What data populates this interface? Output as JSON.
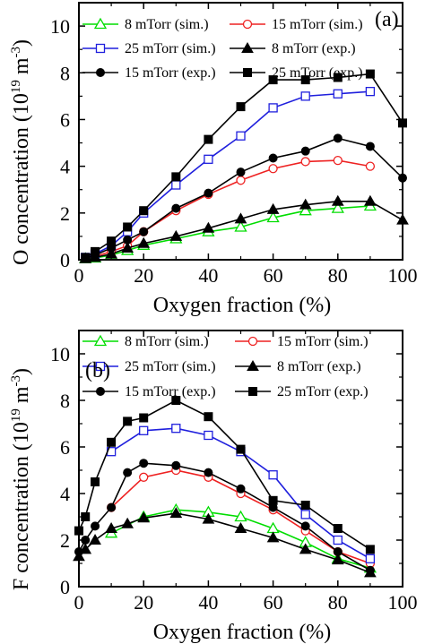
{
  "chart_data": [
    {
      "type": "line",
      "panel_label": "(a)",
      "xlabel": "Oxygen fraction (%)",
      "ylabel_main": "O concentration (10",
      "ylabel_exp": "19",
      "ylabel_unit": " m",
      "ylabel_unit_exp": "-3",
      "ylabel_close": ")",
      "xlim": [
        0,
        100
      ],
      "ylim": [
        0,
        11
      ],
      "xticks": [
        "0",
        "20",
        "40",
        "60",
        "80",
        "100"
      ],
      "yticks": [
        "0",
        "2",
        "4",
        "6",
        "8",
        "10"
      ],
      "x": [
        2,
        5,
        10,
        15,
        20,
        30,
        40,
        50,
        60,
        70,
        80,
        90
      ],
      "series": [
        {
          "name": "8 mTorr (sim.)",
          "color": "#00dd00",
          "marker": "triangle-open",
          "values": [
            0.05,
            0.08,
            0.2,
            0.4,
            0.62,
            0.9,
            1.2,
            1.4,
            1.8,
            2.1,
            2.2,
            2.3
          ]
        },
        {
          "name": "15 mTorr (sim.)",
          "color": "#ee2222",
          "marker": "circle-open",
          "values": [
            0.08,
            0.15,
            0.35,
            0.6,
            1.2,
            2.1,
            2.8,
            3.4,
            3.9,
            4.2,
            4.25,
            4.0
          ]
        },
        {
          "name": "25 mTorr (sim.)",
          "color": "#1f1fdd",
          "marker": "square-open",
          "values": [
            0.1,
            0.25,
            0.6,
            1.2,
            2.0,
            3.2,
            4.3,
            5.3,
            6.5,
            7.0,
            7.1,
            7.2
          ]
        },
        {
          "name": "8 mTorr (exp.)",
          "color": "#000000",
          "marker": "triangle-filled",
          "x": [
            2,
            5,
            10,
            15,
            20,
            30,
            40,
            50,
            60,
            70,
            80,
            90,
            100
          ],
          "values": [
            0.05,
            0.1,
            0.25,
            0.5,
            0.7,
            1.0,
            1.35,
            1.75,
            2.15,
            2.35,
            2.5,
            2.5,
            1.7
          ]
        },
        {
          "name": "15 mTorr (exp.)",
          "color": "#000000",
          "marker": "circle-filled",
          "x": [
            2,
            5,
            10,
            15,
            20,
            30,
            40,
            50,
            60,
            70,
            80,
            90,
            100
          ],
          "values": [
            0.08,
            0.2,
            0.5,
            0.85,
            1.2,
            2.2,
            2.85,
            3.75,
            4.35,
            4.65,
            5.2,
            4.85,
            3.5
          ]
        },
        {
          "name": "25 mTorr (exp.)",
          "color": "#000000",
          "marker": "square-filled",
          "x": [
            2,
            5,
            10,
            15,
            20,
            30,
            40,
            50,
            60,
            70,
            80,
            90,
            100
          ],
          "values": [
            0.1,
            0.35,
            0.8,
            1.4,
            2.1,
            3.55,
            5.15,
            6.55,
            7.7,
            7.7,
            7.8,
            7.95,
            5.85
          ]
        }
      ],
      "legend_layout": "top-left, three rows of two entries"
    },
    {
      "type": "line",
      "panel_label": "(b)",
      "xlabel": "Oxygen fraction (%)",
      "ylabel_main": "F concentration (10",
      "ylabel_exp": "19",
      "ylabel_unit": " m",
      "ylabel_unit_exp": "-3",
      "ylabel_close": ")",
      "xlim": [
        0,
        100
      ],
      "ylim": [
        0,
        11
      ],
      "xticks": [
        "0",
        "20",
        "40",
        "60",
        "80",
        "100"
      ],
      "yticks": [
        "0",
        "2",
        "4",
        "6",
        "8",
        "10"
      ],
      "x": [
        10,
        20,
        30,
        40,
        50,
        60,
        70,
        80,
        90
      ],
      "series": [
        {
          "name": "8 mTorr (sim.)",
          "color": "#00dd00",
          "marker": "triangle-open",
          "values": [
            2.3,
            3.0,
            3.3,
            3.2,
            3.0,
            2.5,
            1.9,
            1.2,
            0.8
          ]
        },
        {
          "name": "15 mTorr (sim.)",
          "color": "#ee2222",
          "marker": "circle-open",
          "values": [
            3.4,
            4.7,
            5.0,
            4.7,
            4.0,
            3.3,
            2.4,
            1.5,
            1.0
          ]
        },
        {
          "name": "25 mTorr (sim.)",
          "color": "#1f1fdd",
          "marker": "square-open",
          "values": [
            5.8,
            6.7,
            6.8,
            6.5,
            5.8,
            4.8,
            3.1,
            2.0,
            1.2
          ]
        },
        {
          "name": "8 mTorr (exp.)",
          "color": "#000000",
          "marker": "triangle-filled",
          "x": [
            0,
            2,
            5,
            10,
            15,
            20,
            30,
            40,
            50,
            60,
            70,
            80,
            90
          ],
          "values": [
            1.3,
            1.6,
            2.0,
            2.5,
            2.7,
            2.95,
            3.15,
            2.9,
            2.5,
            2.1,
            1.6,
            1.15,
            0.6
          ]
        },
        {
          "name": "15 mTorr (exp.)",
          "color": "#000000",
          "marker": "circle-filled",
          "x": [
            0,
            2,
            5,
            10,
            15,
            20,
            30,
            40,
            50,
            60,
            70,
            80,
            90
          ],
          "values": [
            1.5,
            2.0,
            2.6,
            3.4,
            4.9,
            5.3,
            5.2,
            4.9,
            4.2,
            3.4,
            2.6,
            1.5,
            0.7
          ]
        },
        {
          "name": "25 mTorr (exp.)",
          "color": "#000000",
          "marker": "square-filled",
          "x": [
            0,
            2,
            5,
            10,
            15,
            20,
            30,
            40,
            50,
            60,
            70,
            80,
            90
          ],
          "values": [
            2.4,
            3.0,
            4.5,
            6.2,
            7.1,
            7.25,
            8.0,
            7.3,
            5.9,
            3.7,
            3.5,
            2.5,
            1.6
          ]
        }
      ],
      "legend_layout": "top, three rows of two entries"
    }
  ]
}
